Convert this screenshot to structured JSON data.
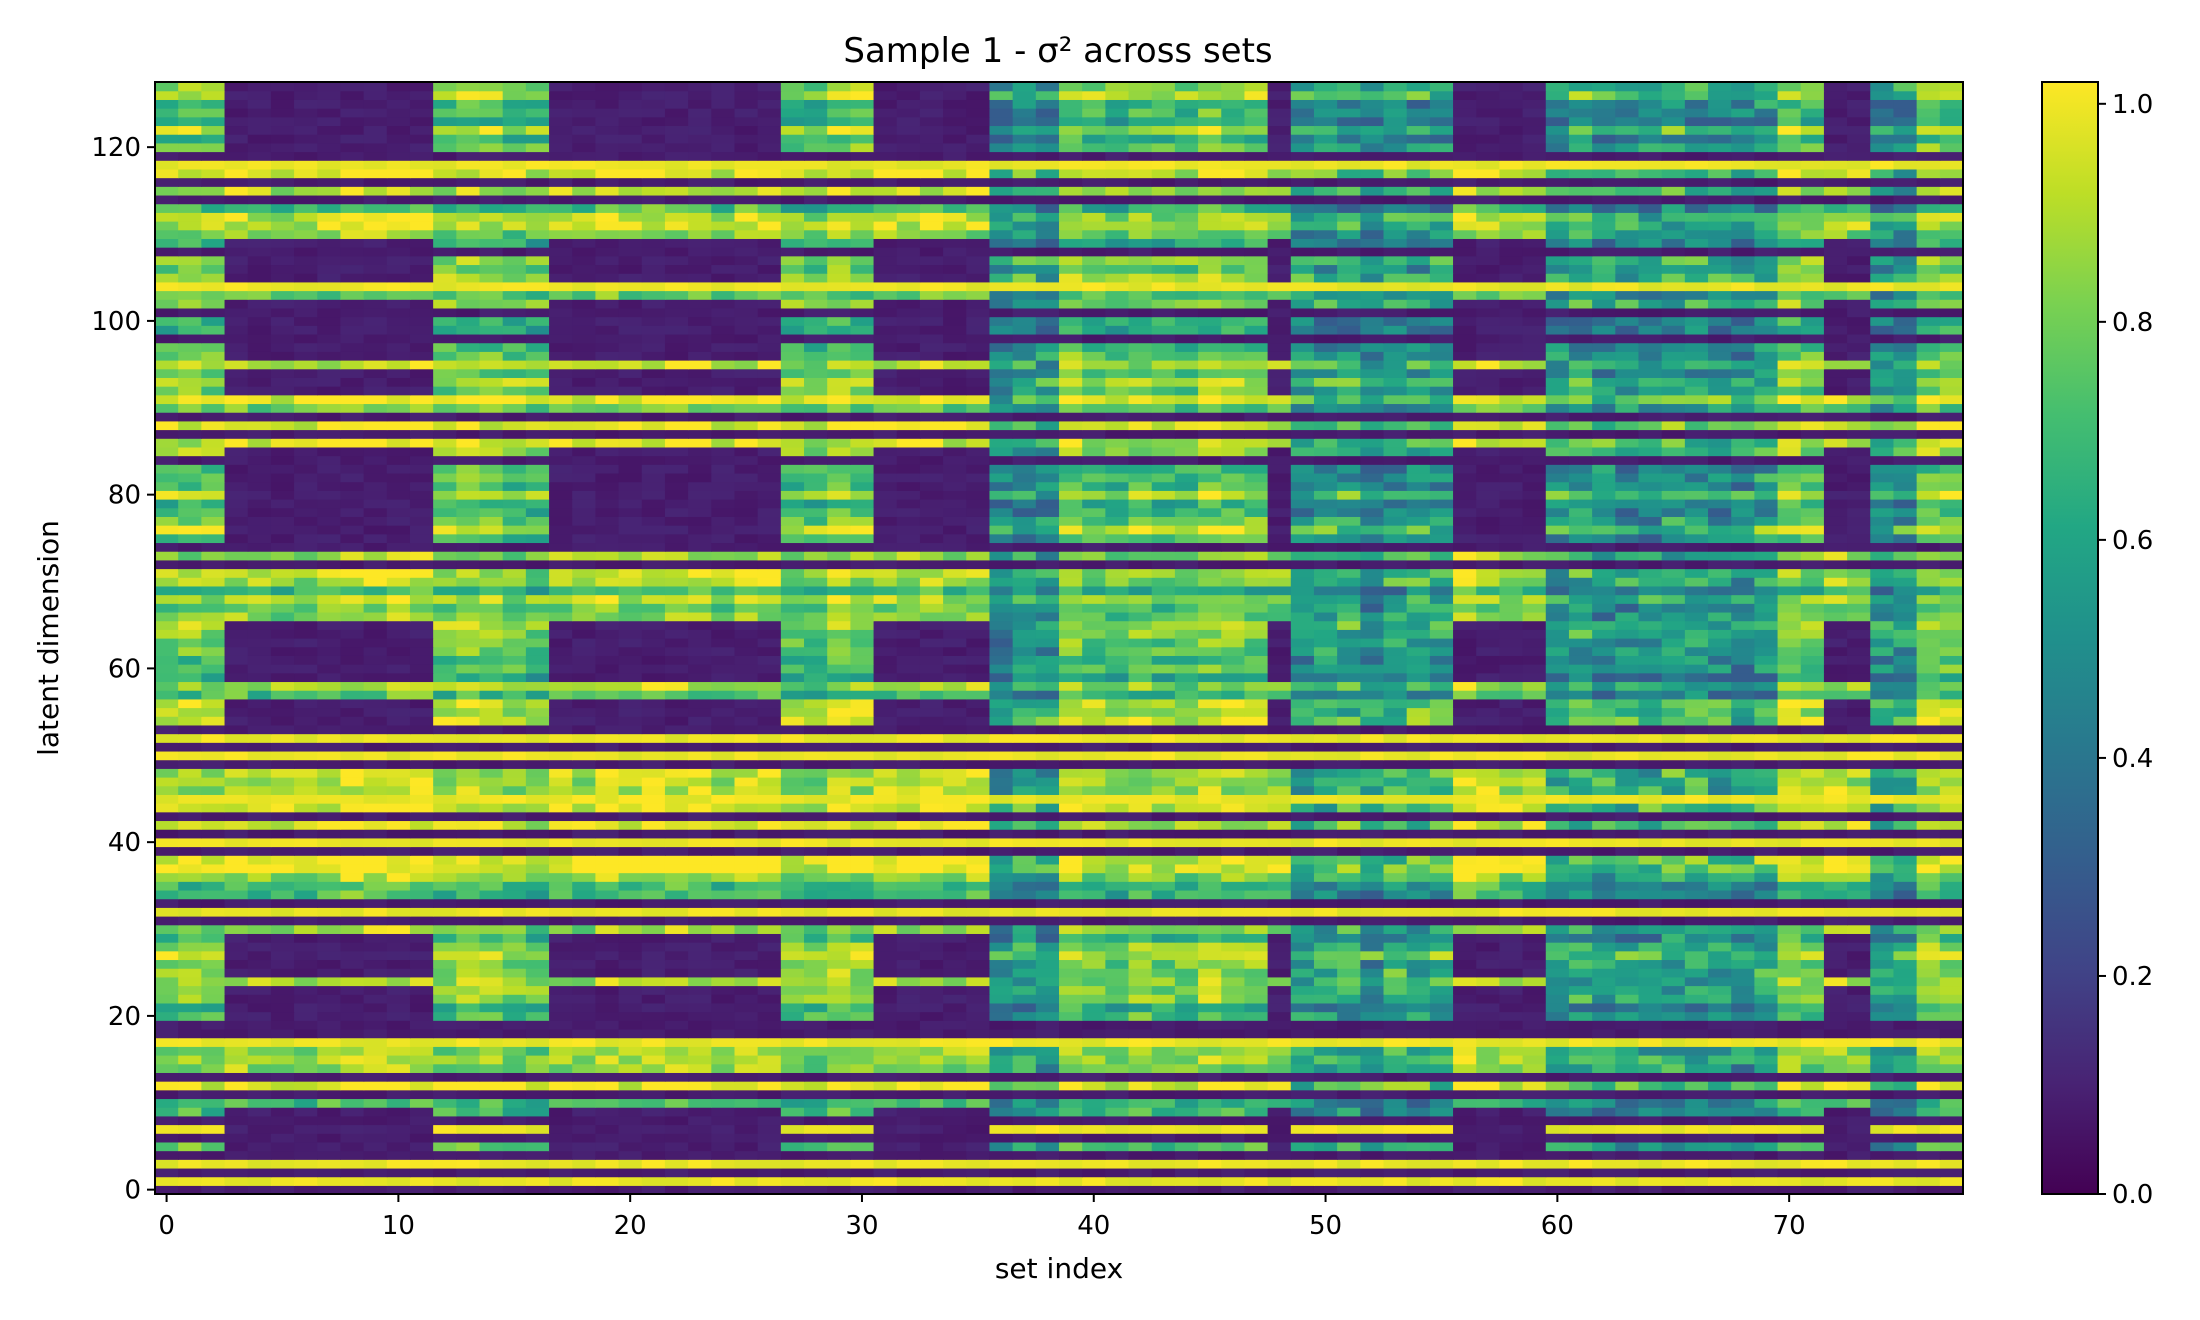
{
  "chart_data": {
    "type": "heatmap",
    "title": "Sample 1 - σ² across sets",
    "xlabel": "set index",
    "ylabel": "latent dimension",
    "x_range": [
      0,
      77
    ],
    "y_range": [
      0,
      127
    ],
    "n_sets": 78,
    "n_dims": 128,
    "xticks": [
      0,
      10,
      20,
      30,
      40,
      50,
      60,
      70
    ],
    "yticks": [
      0,
      20,
      40,
      60,
      80,
      100,
      120
    ],
    "colorbar": {
      "min": 0.0,
      "max": 1.02,
      "ticks": [
        0.0,
        0.2,
        0.4,
        0.6,
        0.8,
        1.0
      ],
      "tick_labels": [
        "0.0",
        "0.2",
        "0.4",
        "0.6",
        "0.8",
        "1.0"
      ]
    },
    "colormap": "viridis",
    "grid": false,
    "collapsed_set_blocks": [
      [
        3,
        11
      ],
      [
        17,
        26
      ],
      [
        31,
        35
      ],
      [
        48,
        48
      ],
      [
        56,
        59
      ],
      [
        72,
        73
      ]
    ],
    "partially_reduced_set_blocks": [
      [
        36,
        38
      ],
      [
        49,
        55
      ],
      [
        60,
        66
      ],
      [
        67,
        69
      ],
      [
        74,
        75
      ]
    ],
    "always_collapsed_dims": [
      0,
      2,
      4,
      6,
      8,
      11,
      13,
      18,
      19,
      31,
      33,
      39,
      41,
      43,
      49,
      51,
      53,
      72,
      74,
      84,
      87,
      89,
      98,
      101,
      108,
      114,
      116,
      119
    ],
    "high_variance_dims": [
      1,
      3,
      7,
      17,
      32,
      40,
      45,
      50,
      52,
      104,
      118
    ],
    "dims_collapsed_in_blocks": [
      [
        5,
        9
      ],
      [
        20,
        23
      ],
      [
        25,
        29
      ],
      [
        54,
        56
      ],
      [
        59,
        65
      ],
      [
        75,
        85
      ],
      [
        92,
        94
      ],
      [
        96,
        102
      ],
      [
        105,
        109
      ],
      [
        120,
        127
      ]
    ]
  }
}
